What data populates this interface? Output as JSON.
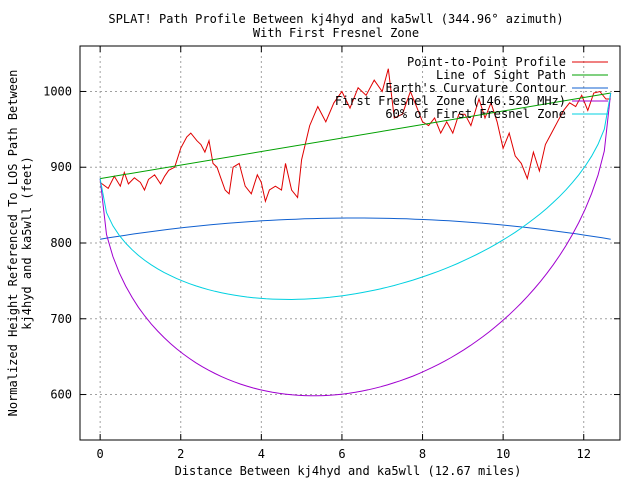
{
  "chart_data": {
    "type": "line",
    "title": "SPLAT! Path Profile Between kj4hyd and ka5wll (344.96° azimuth)",
    "subtitle": "With First Fresnel Zone",
    "xlabel": "Distance Between kj4hyd and ka5wll (12.67 miles)",
    "ylabel_line1": "Normalized Height Referenced To LOS Path Between",
    "ylabel_line2": "kj4hyd and ka5wll (feet)",
    "xlim": [
      -0.5,
      12.9
    ],
    "ylim": [
      540,
      1060
    ],
    "xticks": [
      0,
      2,
      4,
      6,
      8,
      10,
      12
    ],
    "yticks": [
      600,
      700,
      800,
      900,
      1000
    ],
    "grid": true,
    "legend_position": "top-right",
    "series": [
      {
        "name": "Point-to-Point Profile",
        "color": "#e00000",
        "x": [
          0,
          0.2,
          0.35,
          0.5,
          0.6,
          0.7,
          0.85,
          1.0,
          1.1,
          1.2,
          1.35,
          1.5,
          1.6,
          1.7,
          1.85,
          2.0,
          2.15,
          2.25,
          2.4,
          2.5,
          2.6,
          2.7,
          2.8,
          2.9,
          3.0,
          3.1,
          3.2,
          3.3,
          3.45,
          3.6,
          3.75,
          3.9,
          4.0,
          4.1,
          4.2,
          4.35,
          4.5,
          4.6,
          4.75,
          4.9,
          5.0,
          5.2,
          5.4,
          5.6,
          5.8,
          6.0,
          6.2,
          6.4,
          6.6,
          6.8,
          7.0,
          7.15,
          7.3,
          7.5,
          7.7,
          7.85,
          8.0,
          8.15,
          8.3,
          8.45,
          8.6,
          8.75,
          8.9,
          9.05,
          9.2,
          9.4,
          9.55,
          9.7,
          9.85,
          10.0,
          10.15,
          10.3,
          10.45,
          10.6,
          10.75,
          10.9,
          11.05,
          11.2,
          11.35,
          11.5,
          11.65,
          11.8,
          11.95,
          12.1,
          12.25,
          12.4,
          12.55,
          12.67
        ],
        "y": [
          880,
          872,
          888,
          875,
          893,
          878,
          886,
          880,
          870,
          884,
          890,
          878,
          888,
          896,
          900,
          925,
          940,
          945,
          935,
          930,
          920,
          935,
          905,
          900,
          885,
          870,
          865,
          900,
          905,
          875,
          865,
          890,
          880,
          855,
          870,
          875,
          870,
          905,
          870,
          860,
          910,
          955,
          980,
          960,
          985,
          1000,
          978,
          1005,
          995,
          1015,
          1000,
          1030,
          965,
          970,
          1000,
          980,
          960,
          955,
          965,
          945,
          960,
          945,
          970,
          970,
          955,
          990,
          965,
          985,
          960,
          925,
          945,
          915,
          905,
          885,
          920,
          895,
          930,
          945,
          960,
          975,
          985,
          980,
          995,
          975,
          998,
          1000,
          990,
          990
        ]
      },
      {
        "name": "Line of Sight Path",
        "color": "#00a000",
        "x": [
          0,
          12.67
        ],
        "y": [
          885,
          998
        ]
      },
      {
        "name": "Earth's Curvature Contour",
        "color": "#1060d0",
        "curve": "parabola",
        "x_range": [
          0,
          12.67
        ],
        "y_ends": 805,
        "y_mid": 833
      },
      {
        "name": "First Fresnel Zone (146.520 MHz)",
        "color": "#a000d0",
        "curve": "fresnel",
        "x_range": [
          0,
          12.67
        ],
        "y_ends": [
          885,
          998
        ],
        "y_min": 603
      },
      {
        "name": "60% of First Fresnel Zone",
        "color": "#00d0e0",
        "curve": "fresnel",
        "x_range": [
          0,
          12.67
        ],
        "y_ends": [
          885,
          998
        ],
        "y_min": 733
      }
    ]
  }
}
